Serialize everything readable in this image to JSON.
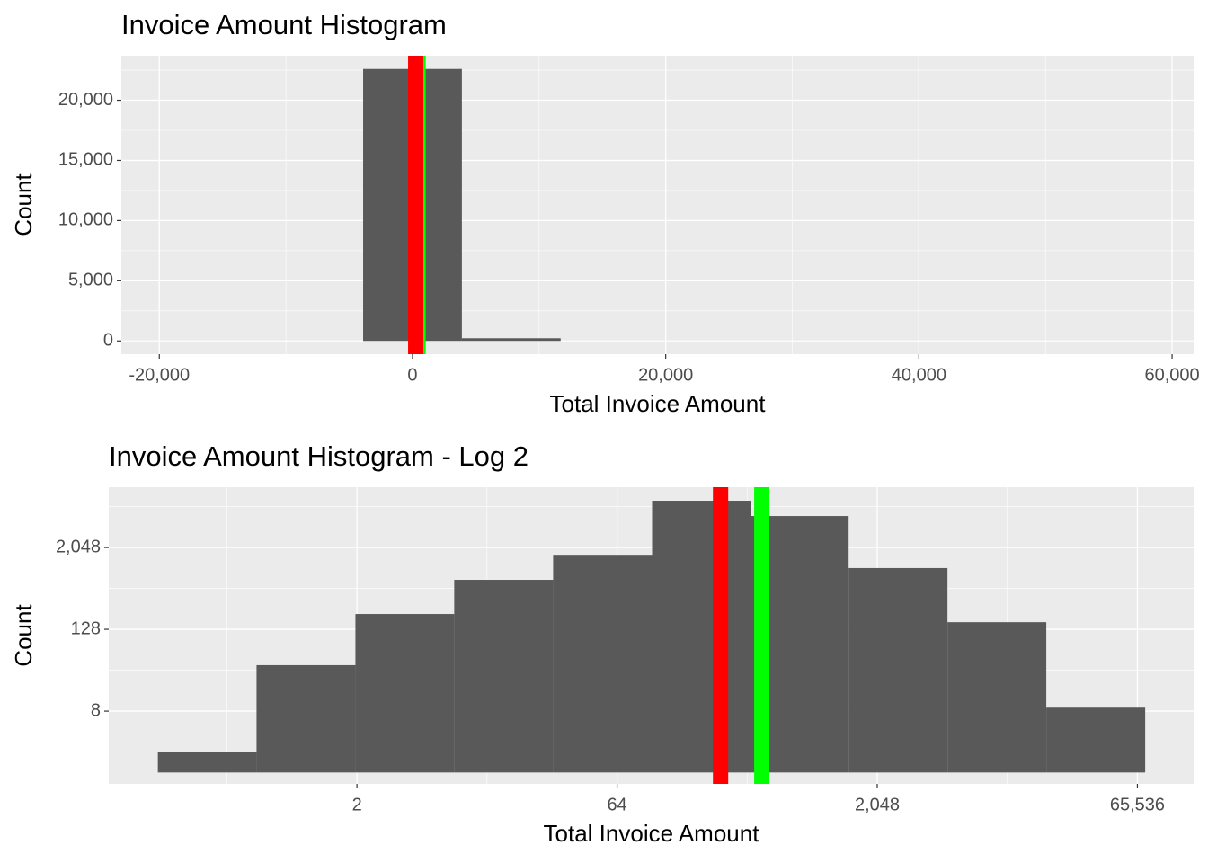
{
  "chart_data": [
    {
      "type": "histogram",
      "title": "Invoice Amount Histogram",
      "x_label": "Total Invoice Amount",
      "y_label": "Count",
      "bins": [
        -3900,
        3900,
        11700
      ],
      "values": [
        22600,
        225
      ],
      "color": "#595959",
      "xlim": [
        -23000,
        61700
      ],
      "ylim": [
        -1100,
        23700
      ],
      "xticks": [
        {
          "value": -20000,
          "label": "-20,000"
        },
        0,
        {
          "value": 20000,
          "label": "20,000"
        },
        {
          "value": 40000,
          "label": "40,000"
        },
        {
          "value": 60000,
          "label": "60,000"
        }
      ],
      "yticks": [
        0,
        {
          "value": 5000,
          "label": "5,000"
        },
        {
          "value": 10000,
          "label": "10,000"
        },
        {
          "value": 15000,
          "label": "15,000"
        },
        {
          "value": 20000,
          "label": "20,000"
        }
      ],
      "vlines": [
        {
          "value": 440,
          "color": "#00ff00"
        },
        {
          "value": 254,
          "color": "#ff0000"
        }
      ],
      "grid": true
    },
    {
      "type": "histogram",
      "title": "Invoice Amount Histogram - Log 2",
      "x_label": "Total Invoice Amount",
      "y_label": "Count",
      "x_scale": "log2",
      "y_scale": "log2",
      "bins": [
        0.141,
        0.525,
        1.96,
        7.31,
        27.3,
        102,
        380,
        1399,
        5220,
        19470,
        72700
      ],
      "values": [
        2,
        38,
        215,
        685,
        1600,
        10000,
        5950,
        1020,
        163,
        9
      ],
      "color": "#595959",
      "xlim": [
        0.0733,
        138600
      ],
      "ylim": [
        0.68,
        15800
      ],
      "xticks": [
        2,
        64,
        {
          "value": 2048,
          "label": "2,048"
        },
        {
          "value": 65536,
          "label": "65,536"
        }
      ],
      "yticks": [
        8,
        128,
        {
          "value": 2048,
          "label": "2,048"
        }
      ],
      "vlines": [
        {
          "value": 254,
          "color": "#ff0000"
        },
        {
          "value": 440,
          "color": "#00ff00"
        }
      ],
      "grid": true
    }
  ]
}
